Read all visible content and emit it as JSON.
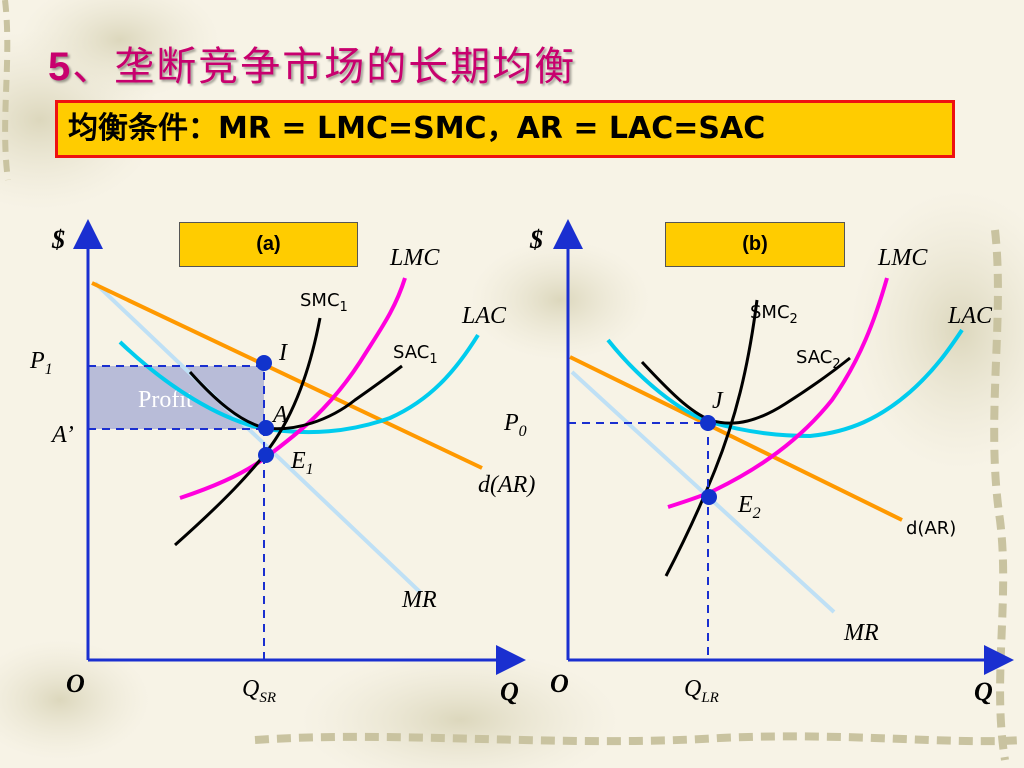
{
  "title": {
    "number": "5",
    "text": "、垄断竞争市场的长期均衡"
  },
  "condition": {
    "text": "均衡条件：MR = LMC=SMC，AR = LAC=SAC"
  },
  "panel_a": {
    "tag": "(a)",
    "y_axis": "$",
    "x_axis": "Q",
    "origin": "O",
    "lmc": "LMC",
    "lac": "LAC",
    "smc_base": "SMC",
    "smc_sub": "1",
    "sac_base": "SAC",
    "sac_sub": "1",
    "dar": "d(AR)",
    "mr": "MR",
    "p_base": "P",
    "p_sub": "1",
    "a_prime": "A’",
    "point_i": "I",
    "point_a": "A",
    "e_base": "E",
    "e_sub": "1",
    "profit": "Profit",
    "q_base": "Q",
    "q_sub": "SR"
  },
  "panel_b": {
    "tag": "(b)",
    "y_axis": "$",
    "x_axis": "Q",
    "origin": "O",
    "lmc": "LMC",
    "lac": "LAC",
    "smc_base": "SMC",
    "smc_sub": "2",
    "sac_base": "SAC",
    "sac_sub": "2",
    "dar": "d(AR)",
    "mr": "MR",
    "p_base": "P",
    "p_sub": "0",
    "point_j": "J",
    "e_base": "E",
    "e_sub": "2",
    "q_base": "Q",
    "q_sub": "LR"
  },
  "colors": {
    "title": "#c8006e",
    "condition_bg": "#ffcc00",
    "condition_border": "#ee1111",
    "axis": "#1a2fd0",
    "lmc": "#ff00dd",
    "lac": "#00ccee",
    "smc_sac": "#000000",
    "dar": "#ff9900",
    "mr": "#bfe0f5",
    "profit": "#b8bcd8",
    "point": "#1133cc"
  }
}
